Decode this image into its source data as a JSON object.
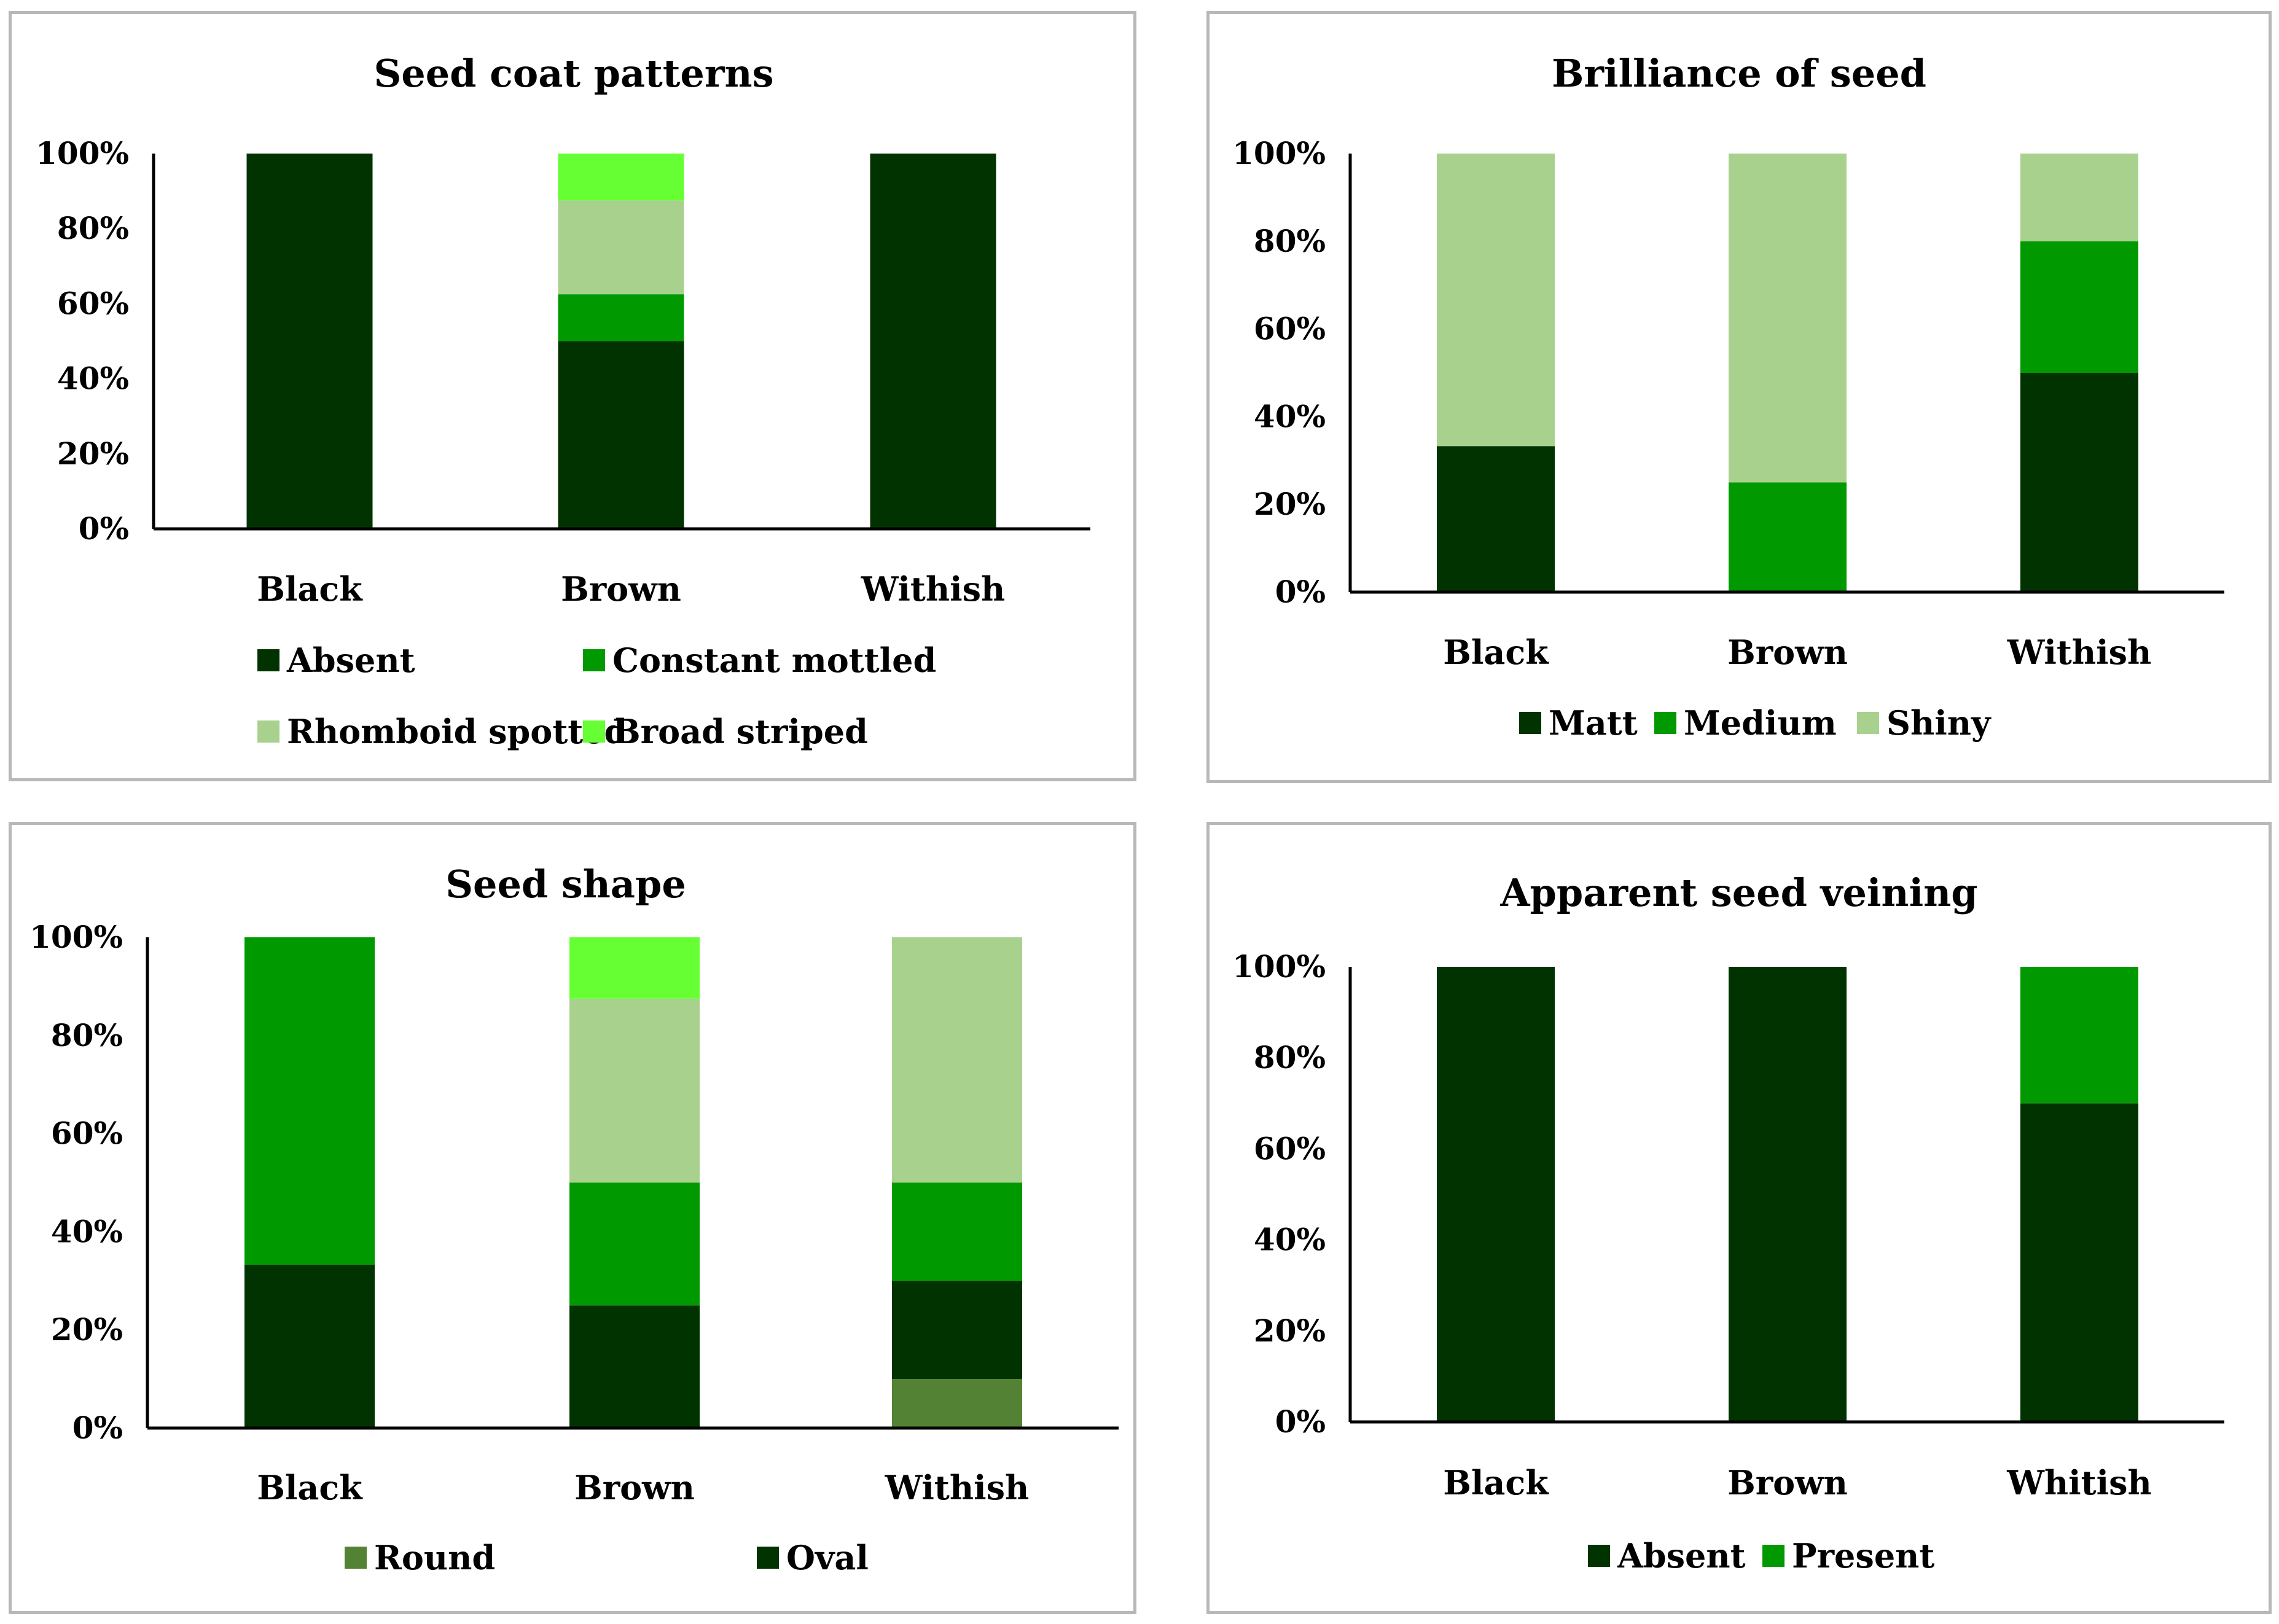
{
  "colors": {
    "dark_green": "#003300",
    "green": "#009900",
    "light_green": "#a9d18e",
    "bright_green": "#66ff33",
    "olive_green": "#548235",
    "axis": "#000000",
    "border": "#b8b8b8"
  },
  "chart_data": [
    {
      "type": "bar",
      "stacked": true,
      "title": "Seed coat patterns",
      "categories": [
        "Black",
        "Brown",
        "Withish"
      ],
      "yticks": [
        "0%",
        "20%",
        "40%",
        "60%",
        "80%",
        "100%"
      ],
      "ylim": [
        0,
        100
      ],
      "series": [
        {
          "name": "Absent",
          "color": "#003300",
          "values": [
            100,
            50,
            100
          ]
        },
        {
          "name": "Constant mottled",
          "color": "#009900",
          "values": [
            0,
            12.5,
            0
          ]
        },
        {
          "name": "Rhomboid spotted",
          "color": "#a9d18e",
          "values": [
            0,
            25,
            0
          ]
        },
        {
          "name": "Broad striped",
          "color": "#66ff33",
          "values": [
            0,
            12.5,
            0
          ]
        }
      ],
      "legend_position": "bottom"
    },
    {
      "type": "bar",
      "stacked": true,
      "title": "Brilliance of seed",
      "categories": [
        "Black",
        "Brown",
        "Withish"
      ],
      "yticks": [
        "0%",
        "20%",
        "40%",
        "60%",
        "80%",
        "100%"
      ],
      "ylim": [
        0,
        100
      ],
      "series": [
        {
          "name": "Matt",
          "color": "#003300",
          "values": [
            33.3,
            0,
            50
          ]
        },
        {
          "name": "Medium",
          "color": "#009900",
          "values": [
            0,
            25,
            30
          ]
        },
        {
          "name": "Shiny",
          "color": "#a9d18e",
          "values": [
            66.7,
            75,
            20
          ]
        }
      ],
      "legend_position": "bottom"
    },
    {
      "type": "bar",
      "stacked": true,
      "title": "Seed shape",
      "categories": [
        "Black",
        "Brown",
        "Withish"
      ],
      "yticks": [
        "0%",
        "20%",
        "40%",
        "60%",
        "80%",
        "100%"
      ],
      "ylim": [
        0,
        100
      ],
      "series": [
        {
          "name": "Round",
          "color": "#548235",
          "values": [
            0,
            0,
            10
          ]
        },
        {
          "name": "Oval",
          "color": "#003300",
          "values": [
            33.3,
            25,
            20
          ]
        },
        {
          "name": "",
          "color": "#009900",
          "values": [
            66.7,
            25,
            20
          ]
        },
        {
          "name": "",
          "color": "#a9d18e",
          "values": [
            0,
            37.5,
            50
          ]
        },
        {
          "name": "",
          "color": "#66ff33",
          "values": [
            0,
            12.5,
            0
          ]
        }
      ],
      "legend_position": "bottom"
    },
    {
      "type": "bar",
      "stacked": true,
      "title": "Apparent seed veining",
      "categories": [
        "Black",
        "Brown",
        "Whitish"
      ],
      "yticks": [
        "0%",
        "20%",
        "40%",
        "60%",
        "80%",
        "100%"
      ],
      "ylim": [
        0,
        100
      ],
      "series": [
        {
          "name": "Absent",
          "color": "#003300",
          "values": [
            100,
            100,
            70
          ]
        },
        {
          "name": "Present",
          "color": "#009900",
          "values": [
            0,
            0,
            30
          ]
        }
      ],
      "legend_position": "bottom"
    }
  ]
}
